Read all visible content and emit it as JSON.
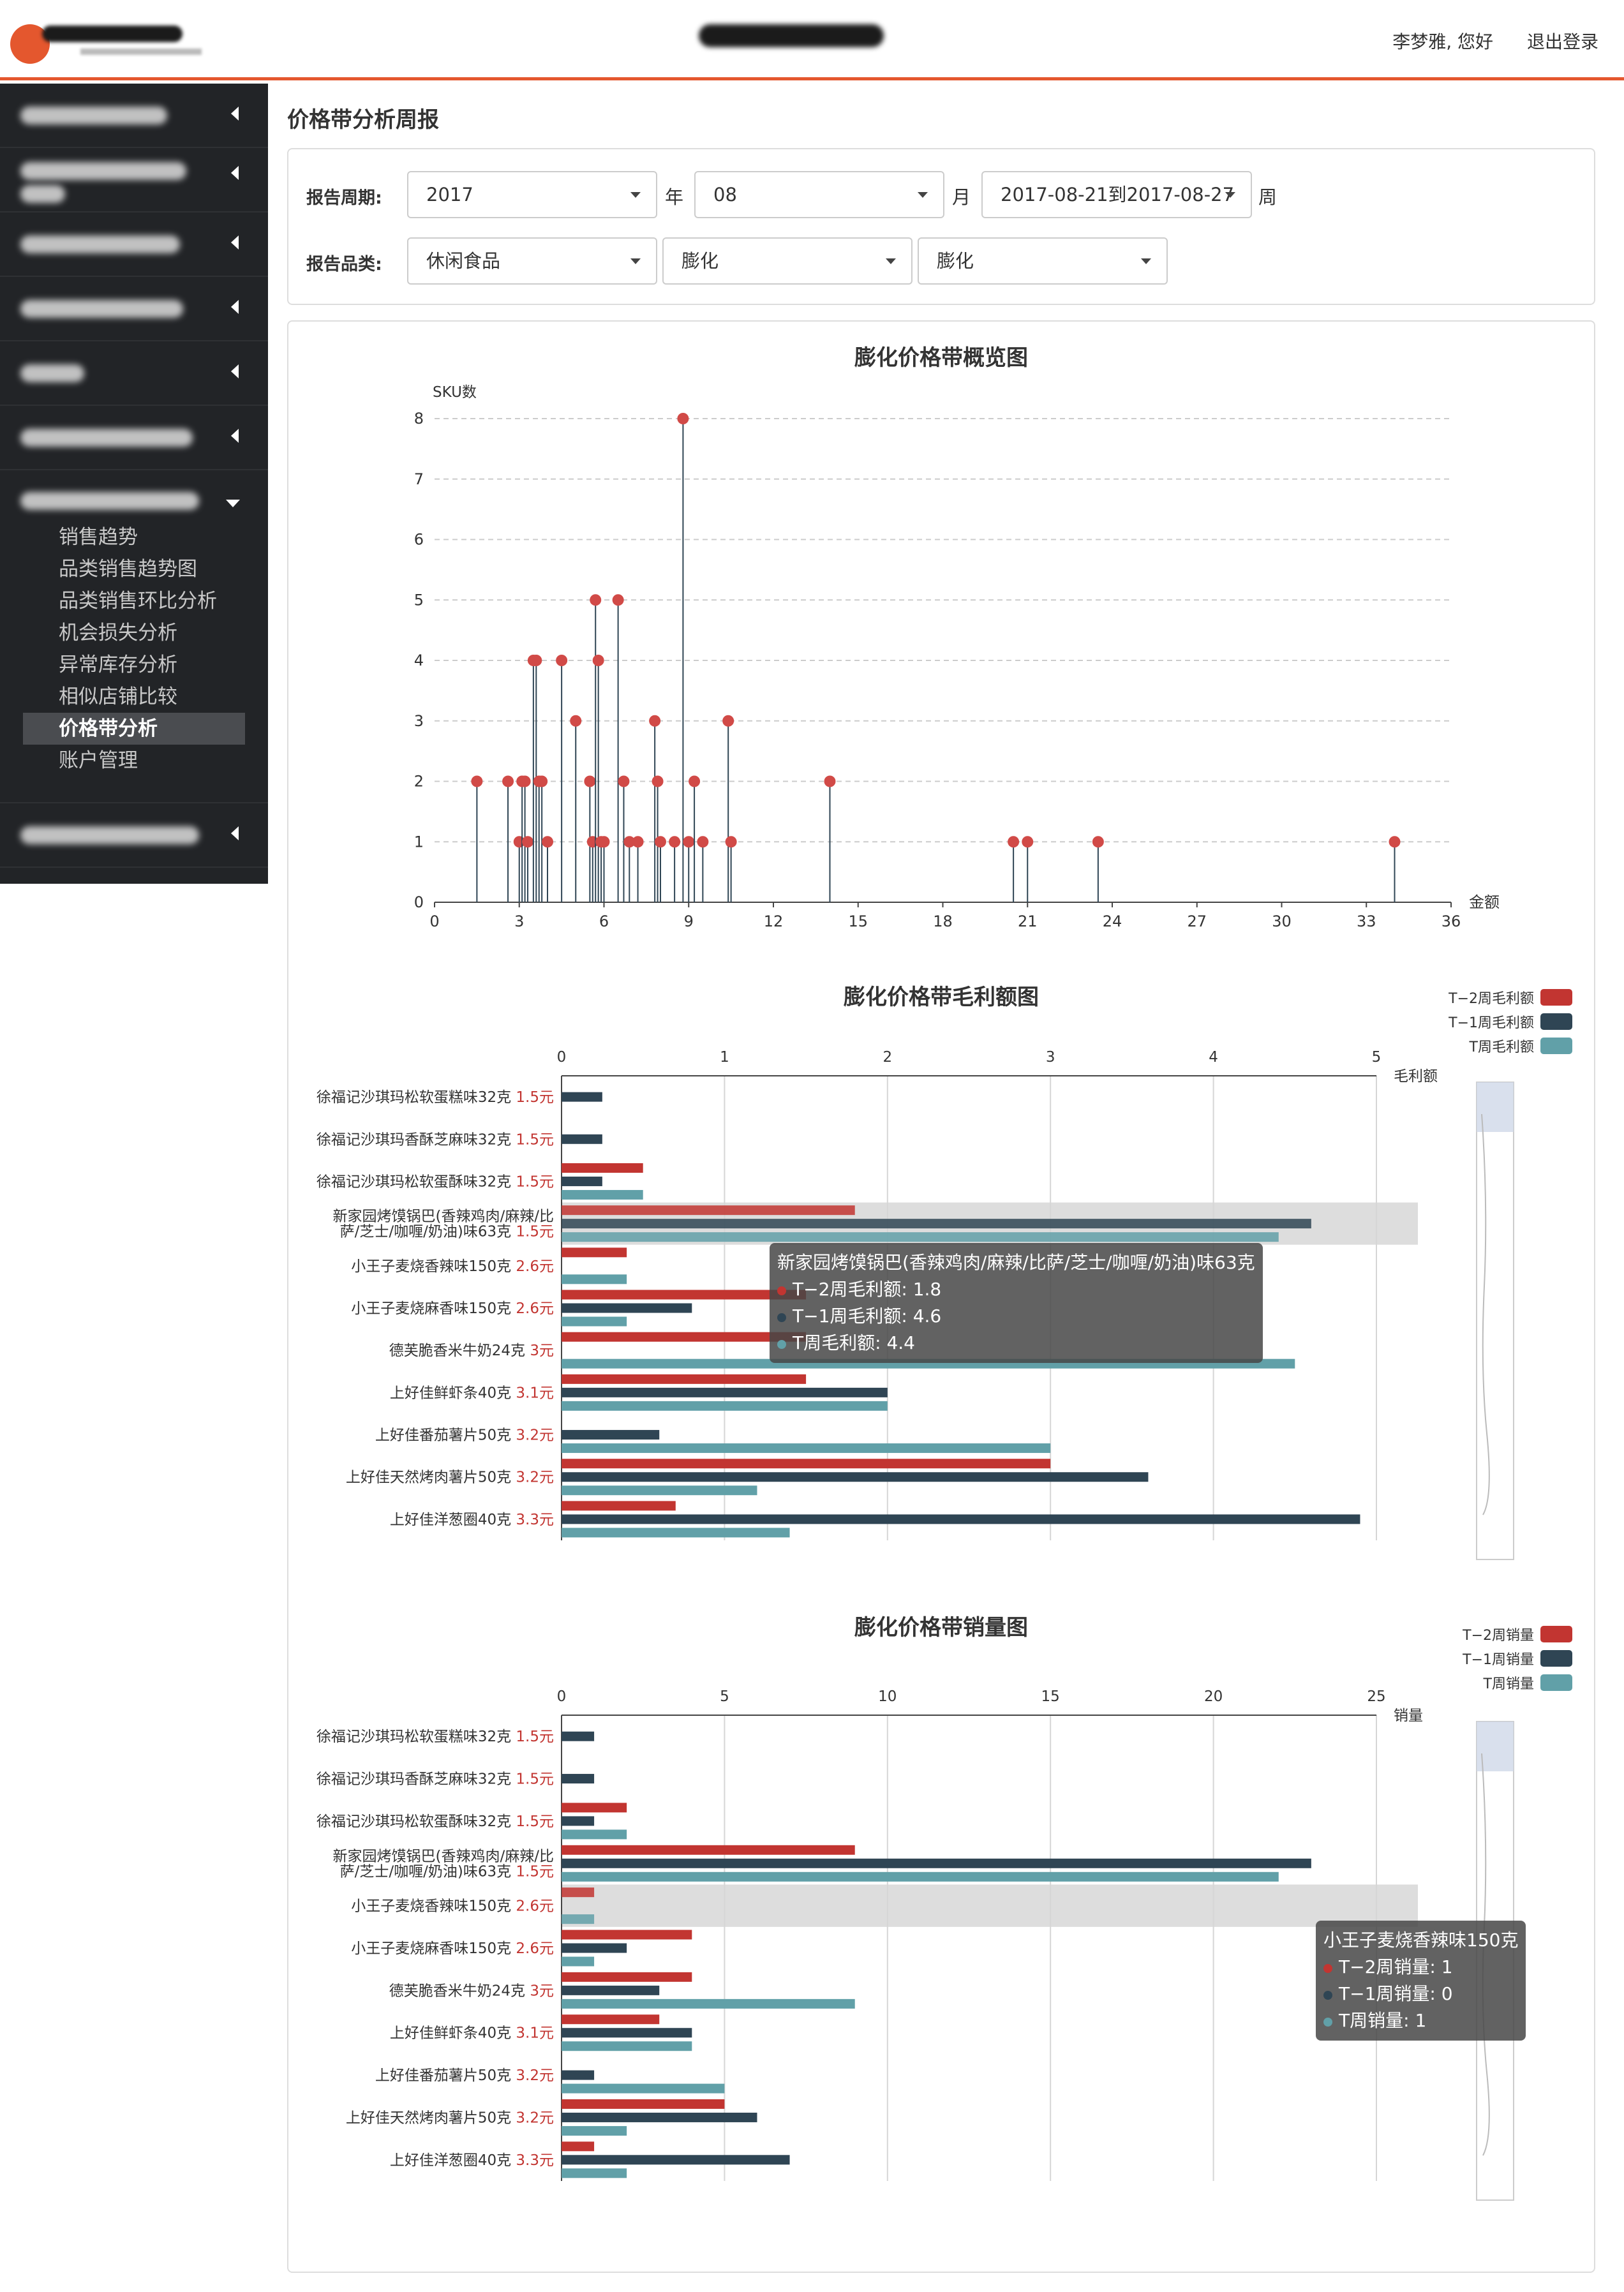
{
  "header": {
    "user_greeting": "李梦雅, 您好",
    "logout": "退出登录"
  },
  "sidebar": {
    "submenu": [
      "销售趋势",
      "品类销售趋势图",
      "品类销售环比分析",
      "机会损失分析",
      "异常库存分析",
      "相似店铺比较",
      "价格带分析",
      "账户管理"
    ],
    "active": "价格带分析"
  },
  "page": {
    "title": "价格带分析周报"
  },
  "filters": {
    "period_label": "报告周期:",
    "year": "2017",
    "year_unit": "年",
    "month": "08",
    "month_unit": "月",
    "week": "2017-08-21到2017-08-27",
    "week_unit": "周",
    "category_label": "报告品类:",
    "cat1": "休闲食品",
    "cat2": "膨化",
    "cat3": "膨化"
  },
  "chart_data": [
    {
      "type": "scatter",
      "title": "膨化价格带概览图",
      "ylabel": "SKU数",
      "xlabel": "金额",
      "xlim": [
        0,
        36
      ],
      "ylim": [
        0,
        8
      ],
      "xticks": [
        0,
        3,
        6,
        9,
        12,
        15,
        18,
        21,
        24,
        27,
        30,
        33,
        36
      ],
      "yticks": [
        0,
        1,
        2,
        3,
        4,
        5,
        6,
        7,
        8
      ],
      "points": [
        [
          1.5,
          2
        ],
        [
          2.6,
          2
        ],
        [
          3,
          1
        ],
        [
          3.1,
          2
        ],
        [
          3.2,
          2
        ],
        [
          3.3,
          1
        ],
        [
          3.5,
          4
        ],
        [
          3.6,
          4
        ],
        [
          3.7,
          2
        ],
        [
          3.8,
          2
        ],
        [
          4,
          1
        ],
        [
          4.5,
          4
        ],
        [
          5,
          3
        ],
        [
          5.5,
          2
        ],
        [
          5.6,
          1
        ],
        [
          5.7,
          5
        ],
        [
          5.8,
          4
        ],
        [
          5.9,
          1
        ],
        [
          6,
          1
        ],
        [
          6.5,
          5
        ],
        [
          6.7,
          2
        ],
        [
          6.9,
          1
        ],
        [
          7.2,
          1
        ],
        [
          7.8,
          3
        ],
        [
          7.9,
          2
        ],
        [
          8,
          1
        ],
        [
          8.5,
          1
        ],
        [
          8.8,
          8
        ],
        [
          9,
          1
        ],
        [
          9.2,
          2
        ],
        [
          9.5,
          1
        ],
        [
          10.4,
          3
        ],
        [
          10.5,
          1
        ],
        [
          14,
          2
        ],
        [
          20.5,
          1
        ],
        [
          21,
          1
        ],
        [
          23.5,
          1
        ],
        [
          34,
          1
        ]
      ]
    },
    {
      "type": "bar",
      "title": "膨化价格带毛利额图",
      "xlabel": "毛利额",
      "xlim": [
        0,
        5
      ],
      "xticks": [
        0,
        1,
        2,
        3,
        4,
        5
      ],
      "categories": [
        "徐福记沙琪玛松软蛋糕味32克",
        "徐福记沙琪玛香酥芝麻味32克",
        "徐福记沙琪玛松软蛋酥味32克",
        "新家园烤馍锅巴(香辣鸡肉/麻辣/比萨/芝士/咖喱/奶油)味63克",
        "小王子麦烧香辣味150克",
        "小王子麦烧麻香味150克",
        "德芙脆香米牛奶24克",
        "上好佳鲜虾条40克",
        "上好佳番茄薯片50克",
        "上好佳天然烤肉薯片50克",
        "上好佳洋葱圈40克"
      ],
      "category_lines": [
        [
          "徐福记沙琪玛松软蛋糕味32克"
        ],
        [
          "徐福记沙琪玛香酥芝麻味32克"
        ],
        [
          "徐福记沙琪玛松软蛋酥味32克"
        ],
        [
          "新家园烤馍锅巴(香辣鸡肉/麻辣/比",
          "萨/芝士/咖喱/奶油)味63克"
        ],
        [
          "小王子麦烧香辣味150克"
        ],
        [
          "小王子麦烧麻香味150克"
        ],
        [
          "德芙脆香米牛奶24克"
        ],
        [
          "上好佳鲜虾条40克"
        ],
        [
          "上好佳番茄薯片50克"
        ],
        [
          "上好佳天然烤肉薯片50克"
        ],
        [
          "上好佳洋葱圈40克"
        ]
      ],
      "prices": [
        "1.5元",
        "1.5元",
        "1.5元",
        "1.5元",
        "2.6元",
        "2.6元",
        "3元",
        "3.1元",
        "3.2元",
        "3.2元",
        "3.3元"
      ],
      "series": [
        {
          "name": "T−2周毛利额",
          "color": "#c23531",
          "values": [
            0,
            0,
            0.5,
            1.8,
            0.4,
            1.5,
            1.5,
            1.5,
            0,
            3,
            0.7
          ]
        },
        {
          "name": "T−1周毛利额",
          "color": "#2f4554",
          "values": [
            0.25,
            0.25,
            0.25,
            4.6,
            0,
            0.8,
            0,
            2,
            0.6,
            3.6,
            4.9
          ]
        },
        {
          "name": "T周毛利额",
          "color": "#61a0a8",
          "values": [
            0,
            0,
            0.5,
            4.4,
            0.4,
            0.4,
            4.5,
            2,
            3,
            1.2,
            1.4
          ]
        }
      ],
      "legend": "top-right",
      "highlight": 3,
      "tooltip": {
        "title": "新家园烤馍锅巴(香辣鸡肉/麻辣/比萨/芝士/咖喱/奶油)味63克",
        "rows": [
          "T−2周毛利额: 1.8",
          "T−1周毛利额: 4.6",
          "T周毛利额: 4.4"
        ]
      }
    },
    {
      "type": "bar",
      "title": "膨化价格带销量图",
      "xlabel": "销量",
      "xlim": [
        0,
        25
      ],
      "xticks": [
        0,
        5,
        10,
        15,
        20,
        25
      ],
      "categories": [
        "徐福记沙琪玛松软蛋糕味32克",
        "徐福记沙琪玛香酥芝麻味32克",
        "徐福记沙琪玛松软蛋酥味32克",
        "新家园烤馍锅巴(香辣鸡肉/麻辣/比萨/芝士/咖喱/奶油)味63克",
        "小王子麦烧香辣味150克",
        "小王子麦烧麻香味150克",
        "德芙脆香米牛奶24克",
        "上好佳鲜虾条40克",
        "上好佳番茄薯片50克",
        "上好佳天然烤肉薯片50克",
        "上好佳洋葱圈40克"
      ],
      "category_lines": [
        [
          "徐福记沙琪玛松软蛋糕味32克"
        ],
        [
          "徐福记沙琪玛香酥芝麻味32克"
        ],
        [
          "徐福记沙琪玛松软蛋酥味32克"
        ],
        [
          "新家园烤馍锅巴(香辣鸡肉/麻辣/比",
          "萨/芝士/咖喱/奶油)味63克"
        ],
        [
          "小王子麦烧香辣味150克"
        ],
        [
          "小王子麦烧麻香味150克"
        ],
        [
          "德芙脆香米牛奶24克"
        ],
        [
          "上好佳鲜虾条40克"
        ],
        [
          "上好佳番茄薯片50克"
        ],
        [
          "上好佳天然烤肉薯片50克"
        ],
        [
          "上好佳洋葱圈40克"
        ]
      ],
      "prices": [
        "1.5元",
        "1.5元",
        "1.5元",
        "1.5元",
        "2.6元",
        "2.6元",
        "3元",
        "3.1元",
        "3.2元",
        "3.2元",
        "3.3元"
      ],
      "series": [
        {
          "name": "T−2周销量",
          "color": "#c23531",
          "values": [
            0,
            0,
            2,
            9,
            1,
            4,
            4,
            3,
            0,
            5,
            1
          ]
        },
        {
          "name": "T−1周销量",
          "color": "#2f4554",
          "values": [
            1,
            1,
            1,
            23,
            0,
            2,
            3,
            4,
            1,
            6,
            7
          ]
        },
        {
          "name": "T周销量",
          "color": "#61a0a8",
          "values": [
            0,
            0,
            2,
            22,
            1,
            1,
            9,
            4,
            5,
            2,
            2
          ]
        }
      ],
      "legend": "top-right",
      "highlight": 4,
      "tooltip": {
        "title": "小王子麦烧香辣味150克",
        "rows": [
          "T−2周销量: 1",
          "T−1周销量: 0",
          "T周销量: 1"
        ]
      }
    }
  ]
}
